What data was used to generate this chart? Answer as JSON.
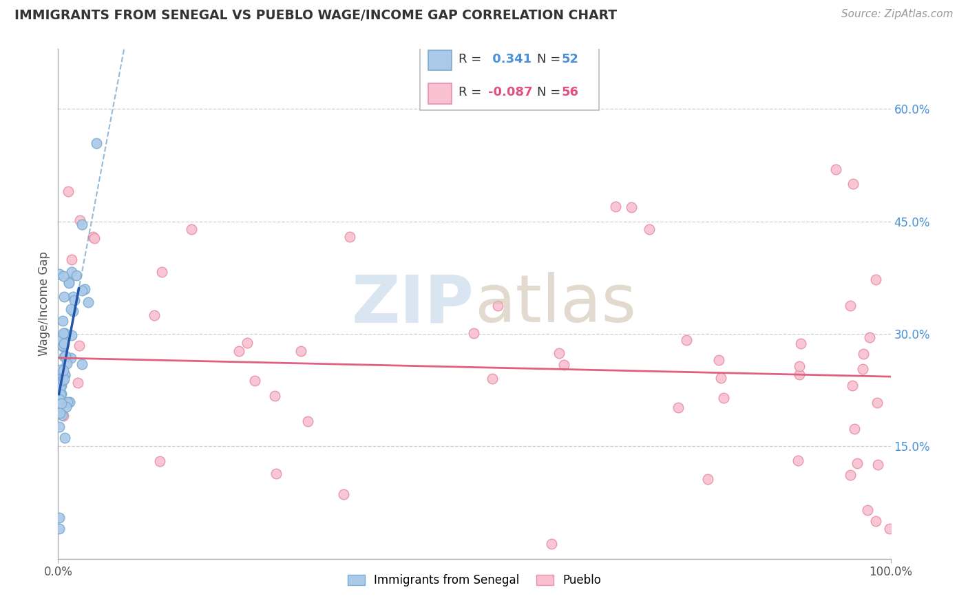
{
  "title": "IMMIGRANTS FROM SENEGAL VS PUEBLO WAGE/INCOME GAP CORRELATION CHART",
  "source": "Source: ZipAtlas.com",
  "ylabel": "Wage/Income Gap",
  "xlim": [
    0.0,
    1.0
  ],
  "ylim": [
    0.0,
    0.68
  ],
  "x_tick_positions": [
    0.0,
    1.0
  ],
  "x_tick_labels": [
    "0.0%",
    "100.0%"
  ],
  "y_tick_values": [
    0.15,
    0.3,
    0.45,
    0.6
  ],
  "y_tick_labels": [
    "15.0%",
    "30.0%",
    "45.0%",
    "60.0%"
  ],
  "blue_line_color": "#2255aa",
  "blue_dash_color": "#7aaad0",
  "pink_line_color": "#e06080",
  "blue_scatter_color": "#aac8e8",
  "blue_scatter_edge": "#7aaad0",
  "pink_scatter_color": "#f8c0d0",
  "pink_scatter_edge": "#e890a8",
  "background_color": "#ffffff",
  "grid_color": "#cccccc",
  "title_color": "#333333",
  "source_color": "#999999",
  "ytick_color": "#4a90d9",
  "legend_r_colors": [
    "#4a90d9",
    "#e05080"
  ],
  "legend_text_color": "#333333",
  "watermark_zip_color": "#c0d4e8",
  "watermark_atlas_color": "#d0c0b0"
}
